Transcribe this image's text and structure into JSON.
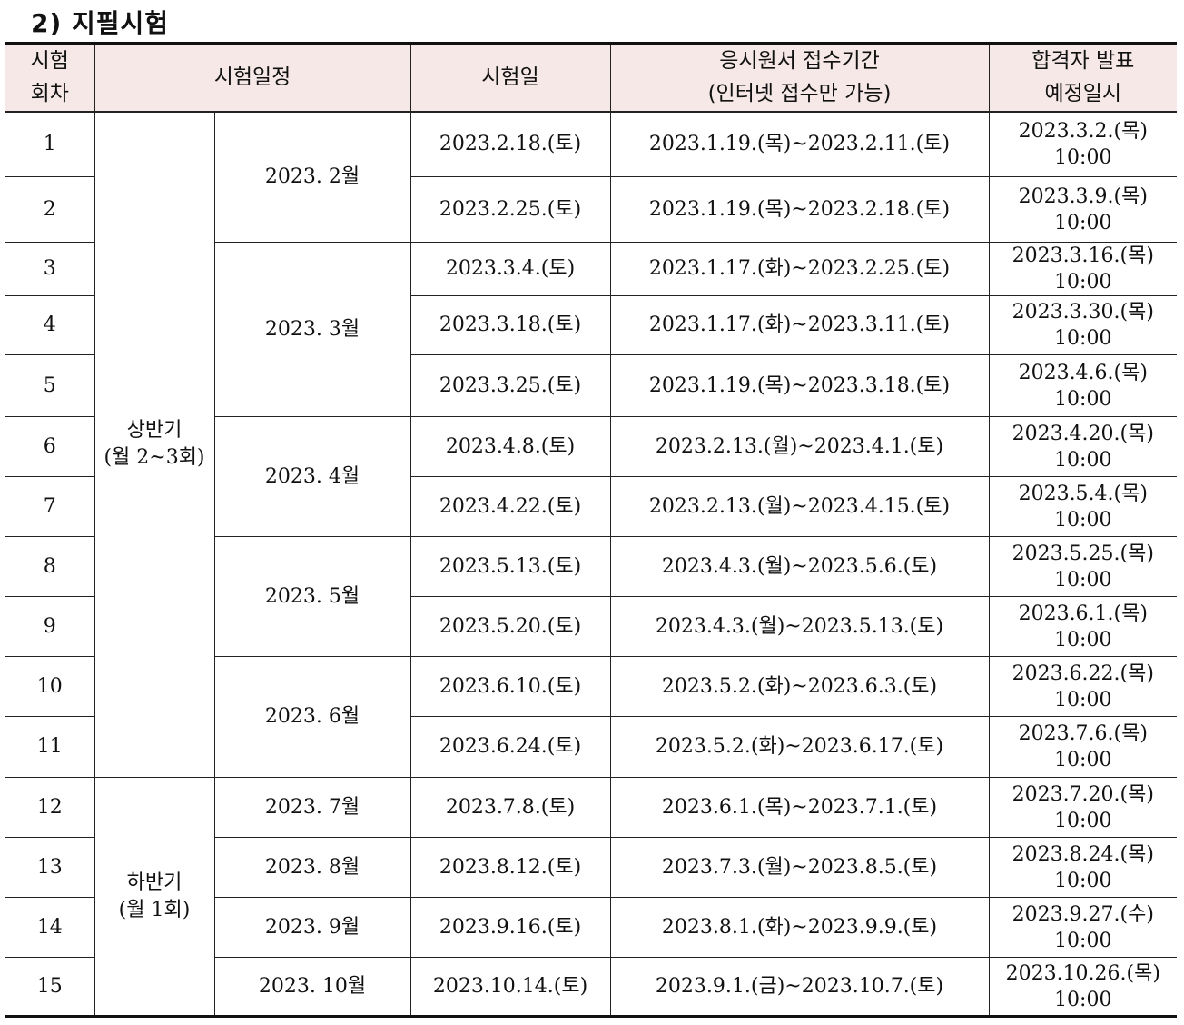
{
  "title": "2) 지필시험",
  "headers": {
    "round": [
      "시험",
      "회차"
    ],
    "schedule": "시험일정",
    "exam_date": "시험일",
    "application": [
      "응시원서 접수기간",
      "(인터넷 접수만 가능)"
    ],
    "announce": [
      "합격자 발표",
      "예정일시"
    ]
  },
  "halves": {
    "first": [
      "상반기",
      "(월 2~3회)"
    ],
    "second": [
      "하반기",
      "(월 1회)"
    ]
  },
  "months": [
    "2023. 2월",
    "2023. 3월",
    "2023. 4월",
    "2023. 5월",
    "2023. 6월",
    "2023. 7월",
    "2023. 8월",
    "2023. 9월",
    "2023. 10월"
  ],
  "rows": [
    {
      "no": "1",
      "date": "2023.2.18.(토)",
      "apply": "2023.1.19.(목)~2023.2.11.(토)",
      "announce_date": "2023.3.2.(목)",
      "announce_time": "10:00"
    },
    {
      "no": "2",
      "date": "2023.2.25.(토)",
      "apply": "2023.1.19.(목)~2023.2.18.(토)",
      "announce_date": "2023.3.9.(목)",
      "announce_time": "10:00"
    },
    {
      "no": "3",
      "date": "2023.3.4.(토)",
      "apply": "2023.1.17.(화)~2023.2.25.(토)",
      "announce_date": "2023.3.16.(목)",
      "announce_time": "10:00"
    },
    {
      "no": "4",
      "date": "2023.3.18.(토)",
      "apply": "2023.1.17.(화)~2023.3.11.(토)",
      "announce_date": "2023.3.30.(목)",
      "announce_time": "10:00"
    },
    {
      "no": "5",
      "date": "2023.3.25.(토)",
      "apply": "2023.1.19.(목)~2023.3.18.(토)",
      "announce_date": "2023.4.6.(목)",
      "announce_time": "10:00"
    },
    {
      "no": "6",
      "date": "2023.4.8.(토)",
      "apply": "2023.2.13.(월)~2023.4.1.(토)",
      "announce_date": "2023.4.20.(목)",
      "announce_time": "10:00"
    },
    {
      "no": "7",
      "date": "2023.4.22.(토)",
      "apply": "2023.2.13.(월)~2023.4.15.(토)",
      "announce_date": "2023.5.4.(목)",
      "announce_time": "10:00"
    },
    {
      "no": "8",
      "date": "2023.5.13.(토)",
      "apply": "2023.4.3.(월)~2023.5.6.(토)",
      "announce_date": "2023.5.25.(목)",
      "announce_time": "10:00"
    },
    {
      "no": "9",
      "date": "2023.5.20.(토)",
      "apply": "2023.4.3.(월)~2023.5.13.(토)",
      "announce_date": "2023.6.1.(목)",
      "announce_time": "10:00"
    },
    {
      "no": "10",
      "date": "2023.6.10.(토)",
      "apply": "2023.5.2.(화)~2023.6.3.(토)",
      "announce_date": "2023.6.22.(목)",
      "announce_time": "10:00"
    },
    {
      "no": "11",
      "date": "2023.6.24.(토)",
      "apply": "2023.5.2.(화)~2023.6.17.(토)",
      "announce_date": "2023.7.6.(목)",
      "announce_time": "10:00"
    },
    {
      "no": "12",
      "date": "2023.7.8.(토)",
      "apply": "2023.6.1.(목)~2023.7.1.(토)",
      "announce_date": "2023.7.20.(목)",
      "announce_time": "10:00"
    },
    {
      "no": "13",
      "date": "2023.8.12.(토)",
      "apply": "2023.7.3.(월)~2023.8.5.(토)",
      "announce_date": "2023.8.24.(목)",
      "announce_time": "10:00"
    },
    {
      "no": "14",
      "date": "2023.9.16.(토)",
      "apply": "2023.8.1.(화)~2023.9.9.(토)",
      "announce_date": "2023.9.27.(수)",
      "announce_time": "10:00"
    },
    {
      "no": "15",
      "date": "2023.10.14.(토)",
      "apply": "2023.9.1.(금)~2023.10.7.(토)",
      "announce_date": "2023.10.26.(목)",
      "announce_time": "10:00"
    }
  ]
}
